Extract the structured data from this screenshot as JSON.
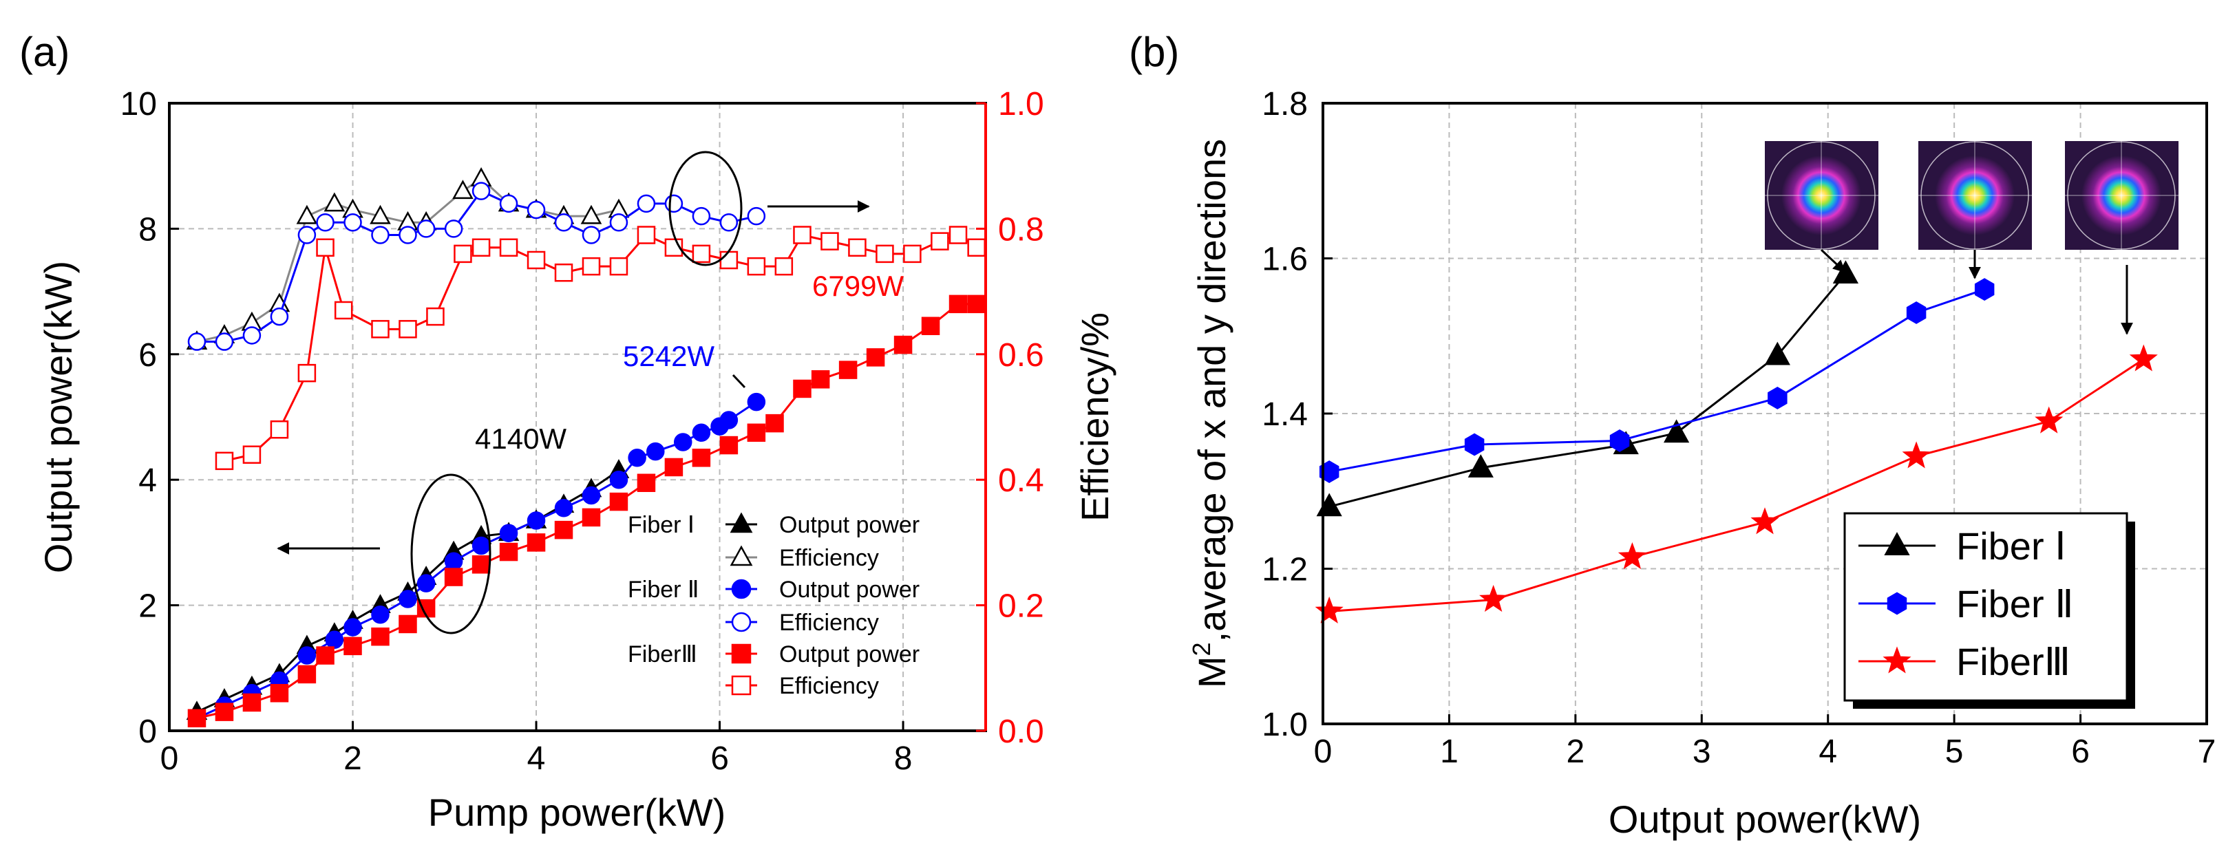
{
  "chart_data": [
    {
      "panel_label": "(a)",
      "type": "line",
      "xlabel": "Pump power(kW)",
      "ylabel_left": "Output power(kW)",
      "ylabel_right": "Efficiency/%",
      "xlim": [
        0,
        8.9
      ],
      "ylim_left": [
        0,
        10
      ],
      "ylim_right": [
        0.0,
        1.0
      ],
      "xticks": [
        "0",
        "2",
        "4",
        "6",
        "8"
      ],
      "yticks_left": [
        "0",
        "2",
        "4",
        "6",
        "8",
        "10"
      ],
      "yticks_right": [
        "0.0",
        "0.2",
        "0.4",
        "0.6",
        "0.8",
        "1.0"
      ],
      "grid": true,
      "series": [
        {
          "name": "Fiber I Output power",
          "fiber_label": "Fiber Ⅰ",
          "legend_label": "Output power",
          "axis": "left",
          "color": "#000000",
          "marker": "triangle",
          "filled": true,
          "x": [
            0.3,
            0.6,
            0.9,
            1.2,
            1.5,
            1.8,
            2.0,
            2.3,
            2.6,
            2.8,
            3.1,
            3.4,
            3.7,
            4.0,
            4.3,
            4.6,
            4.9
          ],
          "y": [
            0.3,
            0.5,
            0.7,
            0.9,
            1.35,
            1.55,
            1.75,
            2.0,
            2.2,
            2.45,
            2.85,
            3.1,
            3.15,
            3.35,
            3.6,
            3.85,
            4.15
          ]
        },
        {
          "name": "Fiber I Efficiency",
          "legend_label": "Efficiency",
          "axis": "right",
          "color": "#000000",
          "line_color": "#888888",
          "marker": "triangle",
          "filled": false,
          "x": [
            0.3,
            0.6,
            0.9,
            1.2,
            1.5,
            1.8,
            2.0,
            2.3,
            2.6,
            2.8,
            3.2,
            3.4,
            3.7,
            4.0,
            4.3,
            4.6,
            4.9
          ],
          "y": [
            0.62,
            0.63,
            0.65,
            0.68,
            0.82,
            0.84,
            0.83,
            0.82,
            0.81,
            0.81,
            0.86,
            0.88,
            0.84,
            0.83,
            0.82,
            0.82,
            0.83
          ]
        },
        {
          "name": "Fiber II Output power",
          "fiber_label": "Fiber Ⅱ",
          "legend_label": "Output power",
          "axis": "left",
          "color": "#0000ff",
          "marker": "circle",
          "filled": true,
          "x": [
            0.3,
            0.6,
            0.9,
            1.2,
            1.5,
            1.8,
            2.0,
            2.3,
            2.6,
            2.8,
            3.1,
            3.4,
            3.7,
            4.0,
            4.3,
            4.6,
            4.9,
            5.1,
            5.3,
            5.6,
            5.8,
            6.0,
            6.1,
            6.4
          ],
          "y": [
            0.2,
            0.4,
            0.6,
            0.8,
            1.2,
            1.45,
            1.65,
            1.85,
            2.1,
            2.35,
            2.7,
            2.95,
            3.15,
            3.35,
            3.55,
            3.75,
            4.0,
            4.35,
            4.45,
            4.6,
            4.75,
            4.85,
            4.95,
            5.24
          ]
        },
        {
          "name": "Fiber II Efficiency",
          "legend_label": "Efficiency",
          "axis": "right",
          "color": "#0000ff",
          "marker": "circle",
          "filled": false,
          "x": [
            0.3,
            0.6,
            0.9,
            1.2,
            1.5,
            1.7,
            2.0,
            2.3,
            2.6,
            2.8,
            3.1,
            3.4,
            3.7,
            4.0,
            4.3,
            4.6,
            4.9,
            5.2,
            5.5,
            5.8,
            6.1,
            6.4
          ],
          "y": [
            0.62,
            0.62,
            0.63,
            0.66,
            0.79,
            0.81,
            0.81,
            0.79,
            0.79,
            0.8,
            0.8,
            0.86,
            0.84,
            0.83,
            0.81,
            0.79,
            0.81,
            0.84,
            0.84,
            0.82,
            0.81,
            0.82
          ]
        },
        {
          "name": "Fiber III Output power",
          "fiber_label": "FiberⅢ",
          "legend_label": "Output power",
          "axis": "left",
          "color": "#ff0000",
          "marker": "square",
          "filled": true,
          "x": [
            0.3,
            0.6,
            0.9,
            1.2,
            1.5,
            1.7,
            2.0,
            2.3,
            2.6,
            2.8,
            3.1,
            3.4,
            3.7,
            4.0,
            4.3,
            4.6,
            4.9,
            5.2,
            5.5,
            5.8,
            6.1,
            6.4,
            6.6,
            6.9,
            7.1,
            7.4,
            7.7,
            8.0,
            8.3,
            8.6,
            8.8
          ],
          "y": [
            0.2,
            0.3,
            0.45,
            0.6,
            0.9,
            1.2,
            1.35,
            1.5,
            1.7,
            1.95,
            2.45,
            2.65,
            2.85,
            3.0,
            3.2,
            3.4,
            3.65,
            3.95,
            4.2,
            4.35,
            4.55,
            4.75,
            4.9,
            5.45,
            5.6,
            5.75,
            5.95,
            6.15,
            6.45,
            6.8,
            6.8
          ]
        },
        {
          "name": "Fiber III Efficiency",
          "legend_label": "Efficiency",
          "axis": "right",
          "color": "#ff0000",
          "marker": "square",
          "filled": false,
          "x": [
            0.6,
            0.9,
            1.2,
            1.5,
            1.7,
            1.9,
            2.3,
            2.6,
            2.9,
            3.2,
            3.4,
            3.7,
            4.0,
            4.3,
            4.6,
            4.9,
            5.2,
            5.5,
            5.8,
            6.1,
            6.4,
            6.7,
            6.9,
            7.2,
            7.5,
            7.8,
            8.1,
            8.4,
            8.6,
            8.8
          ],
          "y": [
            0.43,
            0.44,
            0.48,
            0.57,
            0.77,
            0.67,
            0.64,
            0.64,
            0.66,
            0.76,
            0.77,
            0.77,
            0.75,
            0.73,
            0.74,
            0.74,
            0.79,
            0.77,
            0.76,
            0.75,
            0.74,
            0.74,
            0.79,
            0.78,
            0.77,
            0.76,
            0.76,
            0.78,
            0.79,
            0.77
          ]
        }
      ],
      "annotations": {
        "power_iii": "6799W",
        "power_ii": "5242W",
        "power_i": "4140W"
      }
    },
    {
      "panel_label": "(b)",
      "type": "line",
      "xlabel": "Output power(kW)",
      "ylabel_prefix": "M",
      "ylabel_superscript": "2",
      "ylabel_suffix": ",average of x and y directions",
      "xlim": [
        0,
        7
      ],
      "ylim": [
        1.0,
        1.8
      ],
      "xticks": [
        "0",
        "1",
        "2",
        "3",
        "4",
        "5",
        "6",
        "7"
      ],
      "yticks": [
        "1.0",
        "1.2",
        "1.4",
        "1.6",
        "1.8"
      ],
      "grid": true,
      "series": [
        {
          "name": "Fiber Ⅰ",
          "color": "#000000",
          "marker": "triangle",
          "x": [
            0.05,
            1.25,
            2.4,
            2.8,
            3.6,
            4.14
          ],
          "y": [
            1.28,
            1.33,
            1.36,
            1.375,
            1.475,
            1.58
          ]
        },
        {
          "name": "Fiber Ⅱ",
          "color": "#0000ff",
          "marker": "hexagon",
          "x": [
            0.05,
            1.2,
            2.35,
            3.6,
            4.7,
            5.24
          ],
          "y": [
            1.325,
            1.36,
            1.365,
            1.42,
            1.53,
            1.56
          ]
        },
        {
          "name": "FiberⅢ",
          "color": "#ff0000",
          "marker": "star",
          "x": [
            0.05,
            1.35,
            2.45,
            3.5,
            4.7,
            5.75,
            6.5
          ],
          "y": [
            1.145,
            1.16,
            1.215,
            1.26,
            1.345,
            1.39,
            1.47
          ]
        }
      ],
      "legend_position": "bottom-right",
      "beam_profile_insets": 3
    }
  ]
}
